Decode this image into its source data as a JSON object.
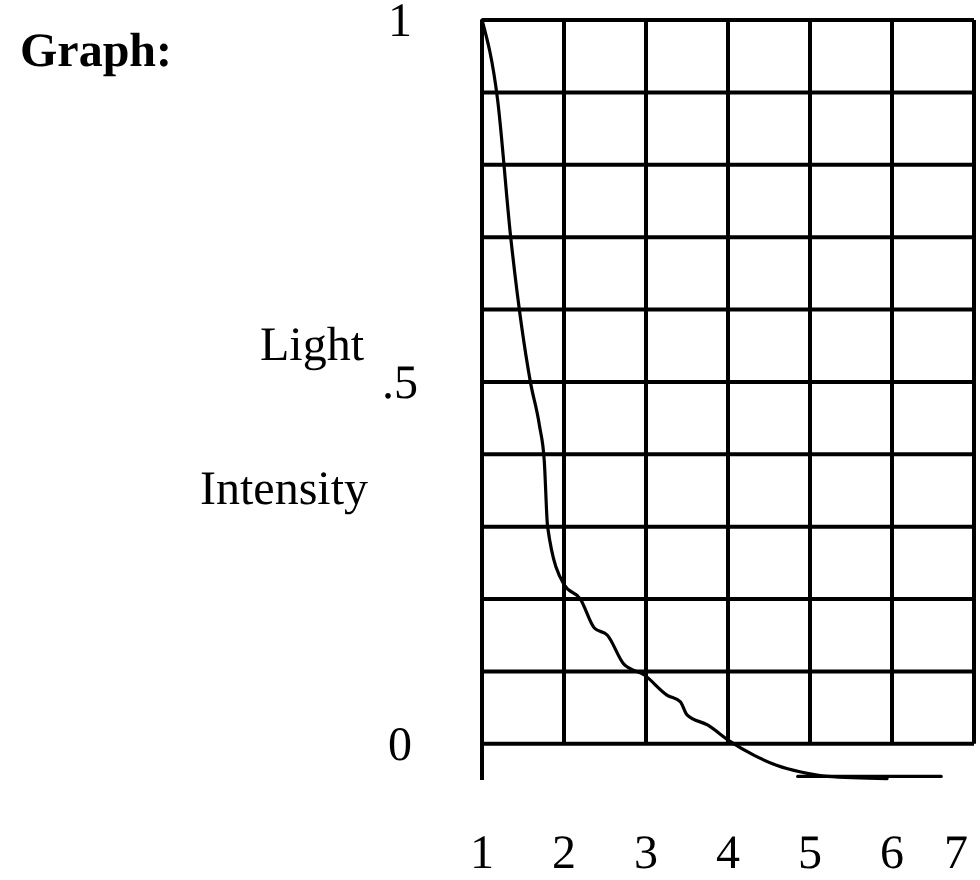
{
  "chart_data": {
    "type": "line",
    "title": "Graph:",
    "ylabel": "Light Intensity",
    "xlim": [
      1,
      7
    ],
    "xticks": [
      1,
      2,
      3,
      4,
      5,
      6,
      7
    ],
    "ylim": [
      -0.05,
      1
    ],
    "yticks": [
      {
        "value": 0,
        "label": "0"
      },
      {
        "value": 0.1,
        "label": null
      },
      {
        "value": 0.2,
        "label": null
      },
      {
        "value": 0.3,
        "label": null
      },
      {
        "value": 0.4,
        "label": null
      },
      {
        "value": 0.5,
        "label": ".5"
      },
      {
        "value": 0.6,
        "label": null
      },
      {
        "value": 0.7,
        "label": null
      },
      {
        "value": 0.8,
        "label": null
      },
      {
        "value": 0.9,
        "label": null
      },
      {
        "value": 1,
        "label": "1"
      }
    ],
    "grid": true,
    "marker": "none",
    "line_style": "solid",
    "series": [
      {
        "color": "#000000",
        "x": [
          1,
          1.19,
          1.35,
          1.59,
          1.7,
          1.76,
          1.8,
          2,
          2.2,
          2.37,
          2.53,
          2.73,
          2.98,
          3.26,
          3.42,
          3.5,
          3.75,
          4.03,
          4.32,
          4.6,
          4.89,
          5.21,
          5.94
        ],
        "values": [
          1,
          0.89,
          0.7,
          0.5,
          0.44,
          0.39,
          0.3,
          0.22,
          0.2,
          0.16,
          0.15,
          0.11,
          0.095,
          0.067,
          0.058,
          0.04,
          0.026,
          0.003,
          -0.016,
          -0.03,
          -0.039,
          -0.045,
          -0.048
        ]
      },
      {
        "color": "#000000",
        "x": [
          4.85,
          6.6
        ],
        "values": [
          -0.045,
          -0.045
        ]
      }
    ]
  }
}
